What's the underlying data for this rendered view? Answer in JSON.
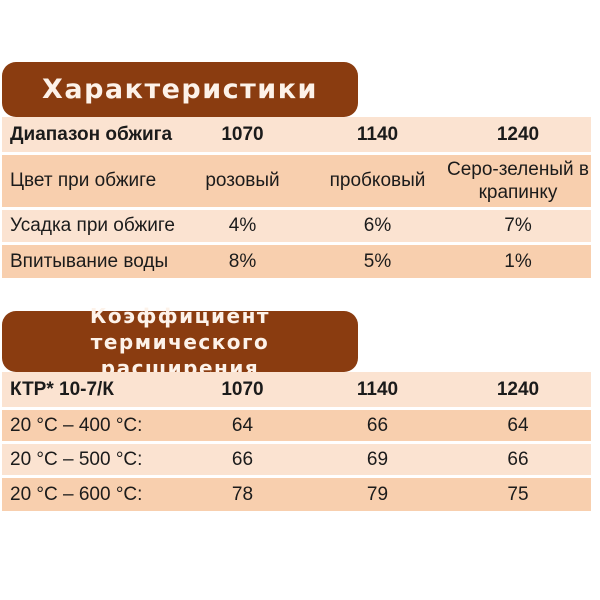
{
  "colors": {
    "badge_bg": "#8a3c10",
    "badge_text": "#fdf2e9",
    "row_light": "#fbe3d1",
    "row_dark": "#f8cfae",
    "text": "#1b1b1b",
    "page_bg": "#ffffff"
  },
  "section1": {
    "title": "Характеристики",
    "table": {
      "header": [
        "Диапазон обжига",
        "1070",
        "1140",
        "1240"
      ],
      "rows": [
        [
          "Цвет при обжиге",
          "розовый",
          "пробковый",
          "Серо-зеленый в крапинку"
        ],
        [
          "Усадка при обжиге",
          "4%",
          "6%",
          "7%"
        ],
        [
          "Впитывание воды",
          "8%",
          "5%",
          "1%"
        ]
      ]
    }
  },
  "section2": {
    "title_line1": "Коэффициент термического",
    "title_line2": "расширения",
    "table": {
      "header": [
        "КТР* 10-7/К",
        "1070",
        "1140",
        "1240"
      ],
      "rows": [
        [
          "20 °C – 400 °C:",
          "64",
          "66",
          "64"
        ],
        [
          "20 °C – 500 °C:",
          "66",
          "69",
          "66"
        ],
        [
          "20 °C – 600 °C:",
          "78",
          "79",
          "75"
        ]
      ]
    }
  }
}
